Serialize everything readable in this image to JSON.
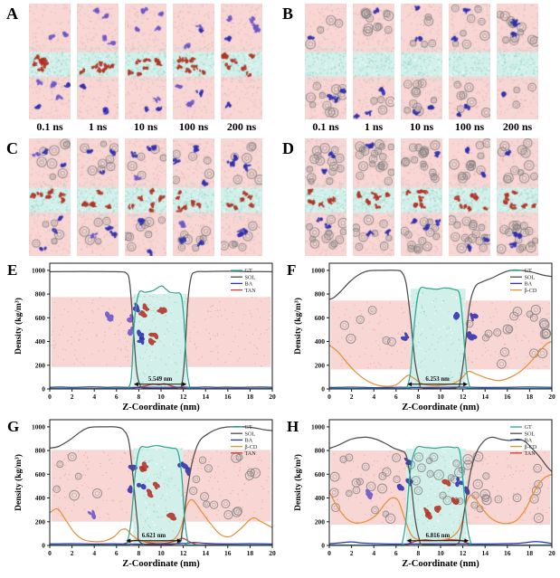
{
  "colors": {
    "background": "#ffffff",
    "water_pink": "#f7d6d4",
    "membrane_cyan": "#d2efe9",
    "gt_line": "#2fa693",
    "sol_line": "#4d4d4d",
    "ba_line": "#2c35b0",
    "bcd_line": "#e6913a",
    "tan_line": "#cf3a30",
    "ring_gray": "#8f8f8f",
    "blob_blue": "#2f2fae",
    "blob_purple": "#6a55c8",
    "blob_red": "#b23222"
  },
  "snapshots": {
    "times": [
      "0.1 ns",
      "1 ns",
      "10 ns",
      "100 ns",
      "200 ns"
    ],
    "panels": [
      {
        "label": "A",
        "rings": 0,
        "purple": 5,
        "blue": 2,
        "red": 7
      },
      {
        "label": "B",
        "rings": 15,
        "purple": 0,
        "blue": 4,
        "red": 0
      },
      {
        "label": "C",
        "rings": 13,
        "purple": 1,
        "blue": 5,
        "red": 6
      },
      {
        "label": "D",
        "rings": 28,
        "purple": 0,
        "blue": 4,
        "red": 6
      }
    ]
  },
  "chart_data": [
    {
      "panel": "E",
      "type": "line",
      "xlabel": "Z-Coordinate (nm)",
      "ylabel": "Density (kg/m³)",
      "xlim": [
        0,
        20
      ],
      "ylim": [
        0,
        1000
      ],
      "xticks": [
        0,
        2,
        4,
        6,
        8,
        10,
        12,
        14,
        16,
        18,
        20
      ],
      "yticks": [
        0,
        200,
        400,
        600,
        800,
        1000
      ],
      "legend_position": "top-right",
      "annotation": {
        "text": "5.549 nm",
        "x1": 7.55,
        "x2": 12.3,
        "y": 40
      },
      "background": {
        "pink": [
          185,
          775
        ],
        "slab": {
          "x1": 7.5,
          "x2": 12.3,
          "top": 800
        },
        "rings": 0,
        "purple": 3,
        "blue": 3,
        "red": 5
      },
      "series": [
        {
          "name": "GT",
          "color": "#2fa693",
          "x": [
            0,
            6.8,
            7.1,
            7.35,
            7.6,
            8.0,
            8.6,
            9.3,
            10.0,
            10.4,
            10.8,
            11.3,
            11.8,
            12.05,
            12.3,
            12.55,
            13.0,
            20
          ],
          "y": [
            4,
            4,
            15,
            120,
            560,
            805,
            815,
            830,
            868,
            845,
            815,
            808,
            790,
            600,
            200,
            30,
            4,
            4
          ]
        },
        {
          "name": "SOL",
          "color": "#4d4d4d",
          "x": [
            0,
            2,
            4,
            6,
            6.9,
            7.2,
            7.5,
            7.8,
            8.1,
            8.5,
            11.4,
            11.9,
            12.15,
            12.4,
            12.7,
            13.1,
            14,
            16,
            18,
            20
          ],
          "y": [
            988,
            990,
            990,
            988,
            975,
            880,
            520,
            160,
            40,
            8,
            8,
            60,
            300,
            720,
            940,
            985,
            990,
            992,
            990,
            988
          ]
        },
        {
          "name": "BA",
          "color": "#2c35b0",
          "x": [
            0,
            1,
            2,
            3,
            4,
            5,
            6,
            7,
            8,
            9,
            10,
            11,
            12,
            13,
            14,
            15,
            16,
            17,
            18,
            19,
            20
          ],
          "y": [
            14,
            16,
            13,
            15,
            17,
            14,
            15,
            13,
            12,
            14,
            13,
            14,
            15,
            13,
            16,
            14,
            15,
            13,
            15,
            16,
            14
          ]
        },
        {
          "name": "TAN",
          "color": "#cf3a30",
          "x": [
            0,
            6.5,
            7.5,
            8.2,
            8.8,
            9.3,
            9.8,
            10.3,
            10.8,
            11.3,
            12,
            12.8,
            20
          ],
          "y": [
            4,
            4,
            8,
            18,
            30,
            42,
            35,
            44,
            30,
            16,
            7,
            4,
            4
          ]
        }
      ]
    },
    {
      "panel": "F",
      "type": "line",
      "xlabel": "Z-Coordinate (nm)",
      "ylabel": "Density (kg/m³)",
      "xlim": [
        0,
        20
      ],
      "ylim": [
        0,
        1000
      ],
      "xticks": [
        0,
        2,
        4,
        6,
        8,
        10,
        12,
        14,
        16,
        18,
        20
      ],
      "yticks": [
        0,
        200,
        400,
        600,
        800,
        1000
      ],
      "legend_position": "top-right",
      "annotation": {
        "text": "6.253 nm",
        "x1": 7.0,
        "x2": 12.45,
        "y": 40
      },
      "background": {
        "pink": [
          165,
          745
        ],
        "slab": {
          "x1": 7.3,
          "x2": 12.25,
          "top": 845
        },
        "rings": 26,
        "purple": 0,
        "blue": 4,
        "red": 0
      },
      "series": [
        {
          "name": "GT",
          "color": "#2fa693",
          "x": [
            0,
            6.7,
            7.0,
            7.3,
            7.7,
            8.1,
            8.8,
            9.6,
            10.4,
            11.2,
            11.7,
            12.0,
            12.3,
            12.6,
            13.0,
            20
          ],
          "y": [
            4,
            4,
            20,
            150,
            600,
            835,
            848,
            840,
            852,
            838,
            800,
            550,
            180,
            25,
            4,
            4
          ]
        },
        {
          "name": "SOL",
          "color": "#4d4d4d",
          "x": [
            0,
            0.4,
            1,
            1.8,
            2.6,
            3.5,
            5,
            6,
            6.5,
            6.9,
            7.3,
            7.7,
            8.1,
            8.5,
            11.3,
            11.8,
            12.2,
            12.6,
            13.1,
            13.8,
            14.6,
            15.5,
            16.3,
            17.2,
            18.2,
            19.2,
            20
          ],
          "y": [
            755,
            770,
            820,
            900,
            960,
            995,
            1000,
            1000,
            985,
            890,
            600,
            230,
            50,
            8,
            8,
            80,
            350,
            700,
            860,
            905,
            935,
            975,
            1000,
            1000,
            985,
            960,
            948
          ]
        },
        {
          "name": "BA",
          "color": "#2c35b0",
          "x": [
            0,
            2,
            4,
            6,
            8,
            10,
            12,
            14,
            16,
            18,
            20
          ],
          "y": [
            12,
            15,
            11,
            14,
            12,
            13,
            15,
            12,
            14,
            16,
            13
          ]
        },
        {
          "name": "β-CD",
          "color": "#e6913a",
          "x": [
            0,
            0.8,
            1.6,
            2.4,
            3.2,
            4.2,
            5.2,
            6.0,
            6.6,
            7.1,
            7.6,
            8.3,
            9.2,
            10.2,
            11.2,
            11.9,
            12.5,
            13.2,
            14.2,
            15.2,
            16.2,
            17.2,
            18.2,
            19.0,
            19.6,
            20
          ],
          "y": [
            370,
            310,
            220,
            140,
            80,
            35,
            22,
            35,
            80,
            115,
            90,
            45,
            28,
            32,
            48,
            90,
            148,
            125,
            90,
            70,
            95,
            150,
            240,
            330,
            385,
            400
          ]
        }
      ]
    },
    {
      "panel": "G",
      "type": "line",
      "xlabel": "Z-Coordinate (nm)",
      "ylabel": "Density (kg/m³)",
      "xlim": [
        0,
        20
      ],
      "ylim": [
        0,
        1000
      ],
      "xticks": [
        0,
        2,
        4,
        6,
        8,
        10,
        12,
        14,
        16,
        18,
        20
      ],
      "yticks": [
        0,
        200,
        400,
        600,
        800,
        1000
      ],
      "legend_position": "top-right",
      "annotation": {
        "text": "6.621 nm",
        "x1": 6.85,
        "x2": 11.85,
        "y": 40
      },
      "background": {
        "pink": [
          200,
          805
        ],
        "slab": {
          "x1": 7.5,
          "x2": 12.0,
          "top": 820
        },
        "rings": 22,
        "purple": 1,
        "blue": 5,
        "red": 5
      },
      "series": [
        {
          "name": "GT",
          "color": "#2fa693",
          "x": [
            0,
            6.6,
            6.95,
            7.3,
            7.7,
            8.1,
            8.8,
            9.6,
            10.3,
            11.0,
            11.5,
            11.85,
            12.1,
            12.4,
            12.8,
            20
          ],
          "y": [
            4,
            4,
            25,
            200,
            620,
            815,
            828,
            842,
            830,
            820,
            795,
            600,
            250,
            40,
            4,
            4
          ]
        },
        {
          "name": "SOL",
          "color": "#4d4d4d",
          "x": [
            0,
            0.8,
            1.8,
            2.8,
            3.6,
            5,
            6,
            6.6,
            7.1,
            7.5,
            7.9,
            8.3,
            11.4,
            11.9,
            12.3,
            12.8,
            13.4,
            14.2,
            15.2,
            16.2,
            17.5,
            18.5,
            19.3,
            20
          ],
          "y": [
            820,
            835,
            890,
            960,
            995,
            1000,
            998,
            975,
            880,
            560,
            180,
            15,
            15,
            120,
            420,
            700,
            870,
            940,
            985,
            1000,
            1000,
            990,
            975,
            968
          ]
        },
        {
          "name": "BA",
          "color": "#2c35b0",
          "x": [
            0,
            2,
            4,
            6,
            8,
            10,
            12,
            13,
            14,
            16,
            18,
            20
          ],
          "y": [
            13,
            15,
            12,
            14,
            11,
            13,
            16,
            25,
            18,
            13,
            15,
            12
          ]
        },
        {
          "name": "β-CD",
          "color": "#e6913a",
          "x": [
            0,
            0.7,
            1.4,
            2.2,
            3.0,
            4.0,
            5.0,
            5.8,
            6.4,
            6.9,
            7.4,
            8.2,
            9.2,
            10.2,
            11.2,
            11.8,
            12.3,
            12.8,
            13.6,
            14.4,
            15.3,
            16.2,
            17.2,
            18.2,
            19.0,
            20
          ],
          "y": [
            275,
            308,
            220,
            110,
            50,
            32,
            40,
            75,
            130,
            135,
            85,
            40,
            30,
            33,
            55,
            150,
            330,
            385,
            290,
            190,
            95,
            75,
            145,
            230,
            200,
            150
          ]
        },
        {
          "name": "TAN",
          "color": "#cf3a30",
          "x": [
            0,
            5.5,
            6.5,
            7.3,
            8.0,
            8.8,
            10,
            11.2,
            11.9,
            12.4,
            13.0,
            14,
            20
          ],
          "y": [
            4,
            4,
            10,
            35,
            45,
            25,
            15,
            35,
            60,
            40,
            12,
            5,
            4
          ]
        }
      ]
    },
    {
      "panel": "H",
      "type": "line",
      "xlabel": "Z-Coordinate (nm)",
      "ylabel": "Density (kg/m³)",
      "xlim": [
        0,
        20
      ],
      "ylim": [
        0,
        1000
      ],
      "xticks": [
        0,
        2,
        4,
        6,
        8,
        10,
        12,
        14,
        16,
        18,
        20
      ],
      "yticks": [
        0,
        200,
        400,
        600,
        800,
        1000
      ],
      "legend_position": "top-right",
      "annotation": {
        "text": "6.816 nm",
        "x1": 6.95,
        "x2": 12.55,
        "y": 40
      },
      "background": {
        "pink": [
          175,
          800
        ],
        "slab": {
          "x1": 6.9,
          "x2": 12.3,
          "top": 815
        },
        "rings": 55,
        "purple": 1,
        "blue": 5,
        "red": 5
      },
      "series": [
        {
          "name": "GT",
          "color": "#2fa693",
          "x": [
            0,
            6.2,
            6.55,
            6.9,
            7.3,
            7.8,
            8.6,
            9.5,
            10.4,
            11.2,
            11.7,
            12.0,
            12.35,
            12.7,
            13.1,
            20
          ],
          "y": [
            4,
            4,
            25,
            220,
            640,
            818,
            826,
            820,
            830,
            824,
            800,
            560,
            200,
            30,
            4,
            4
          ]
        },
        {
          "name": "SOL",
          "color": "#4d4d4d",
          "x": [
            0,
            0.8,
            1.8,
            2.6,
            3.4,
            4.2,
            5.0,
            5.8,
            6.4,
            6.9,
            7.3,
            7.7,
            8.1,
            8.5,
            11.3,
            11.8,
            12.2,
            12.7,
            13.2,
            13.9,
            14.6,
            15.4,
            16.2,
            17.0,
            17.6,
            18.3,
            19.0,
            19.6,
            20
          ],
          "y": [
            818,
            845,
            890,
            908,
            912,
            895,
            862,
            820,
            800,
            760,
            560,
            230,
            50,
            8,
            8,
            90,
            330,
            620,
            780,
            880,
            912,
            895,
            885,
            895,
            875,
            810,
            735,
            660,
            622
          ]
        },
        {
          "name": "BA",
          "color": "#2c35b0",
          "x": [
            0,
            1,
            2,
            3,
            5,
            7,
            9,
            11,
            13,
            15,
            17,
            18.5,
            19.5,
            20
          ],
          "y": [
            15,
            22,
            30,
            20,
            13,
            12,
            13,
            14,
            12,
            14,
            18,
            32,
            24,
            15
          ]
        },
        {
          "name": "β-CD",
          "color": "#e6913a",
          "x": [
            0,
            0.7,
            1.5,
            2.3,
            3.2,
            4.2,
            5.0,
            5.6,
            6.2,
            6.8,
            7.4,
            8.2,
            9.2,
            10.2,
            11.0,
            11.8,
            12.4,
            12.9,
            13.6,
            14.4,
            15.2,
            16.0,
            16.8,
            17.6,
            18.4,
            19.2,
            20
          ],
          "y": [
            452,
            330,
            230,
            190,
            200,
            255,
            350,
            400,
            375,
            220,
            85,
            45,
            40,
            48,
            70,
            160,
            380,
            420,
            330,
            240,
            195,
            185,
            210,
            300,
            450,
            560,
            600
          ]
        },
        {
          "name": "TAN",
          "color": "#cf3a30",
          "x": [
            0,
            6.3,
            7.2,
            7.9,
            8.6,
            9.4,
            10.2,
            11.0,
            11.8,
            12.4,
            13.0,
            13.8,
            20
          ],
          "y": [
            4,
            4,
            18,
            40,
            48,
            42,
            46,
            48,
            42,
            22,
            8,
            4,
            4
          ]
        }
      ]
    }
  ]
}
